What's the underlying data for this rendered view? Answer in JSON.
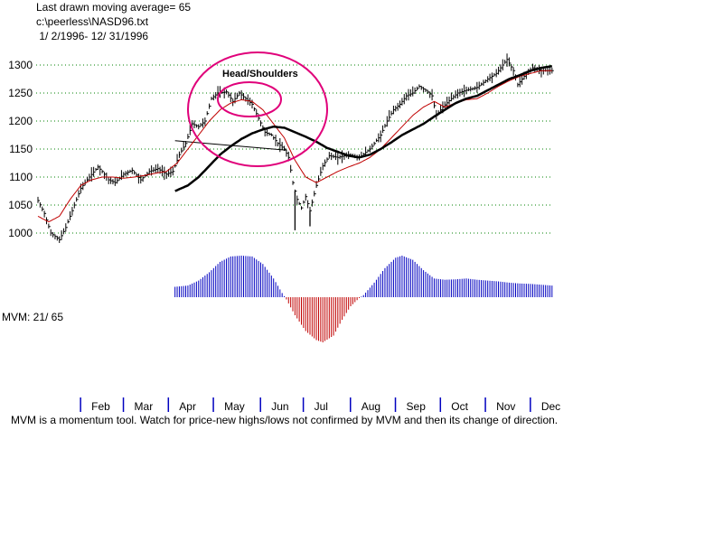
{
  "header": {
    "line1": "Last drawn moving average= 65",
    "line2": "c:\\peerless\\NASD96.txt",
    "line3": " 1/ 2/1996- 12/ 31/1996"
  },
  "chart_data": {
    "type": "line",
    "title": "",
    "ylim": [
      980,
      1325
    ],
    "yticks": [
      1000,
      1050,
      1100,
      1150,
      1200,
      1250,
      1300
    ],
    "grid": true,
    "months": [
      "Feb",
      "Mar",
      "Apr",
      "May",
      "Jun",
      "Jul",
      "Aug",
      "Sep",
      "Oct",
      "Nov",
      "Dec"
    ],
    "month_starts": [
      22,
      42,
      63,
      84,
      106,
      126,
      148,
      169,
      190,
      211,
      232
    ],
    "total_days": 252,
    "price_anchors": [
      [
        0,
        1058
      ],
      [
        3,
        1035
      ],
      [
        6,
        1000
      ],
      [
        10,
        988
      ],
      [
        13,
        1010
      ],
      [
        16,
        1040
      ],
      [
        20,
        1080
      ],
      [
        24,
        1100
      ],
      [
        28,
        1118
      ],
      [
        30,
        1110
      ],
      [
        33,
        1095
      ],
      [
        36,
        1090
      ],
      [
        40,
        1105
      ],
      [
        44,
        1112
      ],
      [
        48,
        1095
      ],
      [
        52,
        1110
      ],
      [
        56,
        1115
      ],
      [
        60,
        1105
      ],
      [
        63,
        1110
      ],
      [
        66,
        1140
      ],
      [
        69,
        1160
      ],
      [
        72,
        1195
      ],
      [
        75,
        1190
      ],
      [
        78,
        1200
      ],
      [
        81,
        1240
      ],
      [
        84,
        1250
      ],
      [
        88,
        1252
      ],
      [
        91,
        1235
      ],
      [
        94,
        1250
      ],
      [
        97,
        1240
      ],
      [
        100,
        1230
      ],
      [
        103,
        1205
      ],
      [
        106,
        1180
      ],
      [
        109,
        1175
      ],
      [
        112,
        1160
      ],
      [
        115,
        1150
      ],
      [
        117,
        1135
      ],
      [
        119,
        1090
      ],
      [
        121,
        1060
      ],
      [
        123,
        1045
      ],
      [
        125,
        1065
      ],
      [
        127,
        1040
      ],
      [
        130,
        1085
      ],
      [
        133,
        1120
      ],
      [
        136,
        1138
      ],
      [
        140,
        1135
      ],
      [
        145,
        1140
      ],
      [
        150,
        1135
      ],
      [
        155,
        1150
      ],
      [
        160,
        1175
      ],
      [
        163,
        1200
      ],
      [
        166,
        1220
      ],
      [
        169,
        1230
      ],
      [
        172,
        1245
      ],
      [
        175,
        1250
      ],
      [
        178,
        1262
      ],
      [
        181,
        1255
      ],
      [
        184,
        1245
      ],
      [
        186,
        1210
      ],
      [
        189,
        1225
      ],
      [
        193,
        1240
      ],
      [
        196,
        1250
      ],
      [
        200,
        1255
      ],
      [
        205,
        1260
      ],
      [
        210,
        1275
      ],
      [
        214,
        1285
      ],
      [
        217,
        1300
      ],
      [
        219,
        1310
      ],
      [
        222,
        1290
      ],
      [
        224,
        1265
      ],
      [
        227,
        1280
      ],
      [
        231,
        1295
      ],
      [
        235,
        1290
      ],
      [
        240,
        1290
      ]
    ],
    "spikes": [
      {
        "day": 120,
        "low": 1005
      },
      {
        "day": 127,
        "low": 1012
      }
    ],
    "ma_short_anchors": [
      [
        0,
        1030
      ],
      [
        5,
        1020
      ],
      [
        10,
        1030
      ],
      [
        15,
        1060
      ],
      [
        20,
        1085
      ],
      [
        25,
        1095
      ],
      [
        30,
        1100
      ],
      [
        35,
        1100
      ],
      [
        40,
        1098
      ],
      [
        45,
        1100
      ],
      [
        50,
        1103
      ],
      [
        55,
        1107
      ],
      [
        60,
        1110
      ],
      [
        65,
        1125
      ],
      [
        70,
        1150
      ],
      [
        75,
        1175
      ],
      [
        80,
        1200
      ],
      [
        85,
        1220
      ],
      [
        90,
        1232
      ],
      [
        95,
        1238
      ],
      [
        100,
        1235
      ],
      [
        105,
        1220
      ],
      [
        110,
        1195
      ],
      [
        115,
        1170
      ],
      [
        120,
        1130
      ],
      [
        125,
        1100
      ],
      [
        130,
        1090
      ],
      [
        135,
        1100
      ],
      [
        140,
        1110
      ],
      [
        145,
        1118
      ],
      [
        150,
        1125
      ],
      [
        155,
        1135
      ],
      [
        160,
        1150
      ],
      [
        165,
        1170
      ],
      [
        170,
        1190
      ],
      [
        175,
        1210
      ],
      [
        180,
        1225
      ],
      [
        185,
        1235
      ],
      [
        190,
        1225
      ],
      [
        195,
        1232
      ],
      [
        200,
        1238
      ],
      [
        205,
        1240
      ],
      [
        210,
        1250
      ],
      [
        215,
        1262
      ],
      [
        220,
        1272
      ],
      [
        225,
        1280
      ],
      [
        230,
        1285
      ],
      [
        235,
        1290
      ],
      [
        240,
        1290
      ]
    ],
    "ma_long_anchors": [
      [
        64,
        1075
      ],
      [
        70,
        1085
      ],
      [
        75,
        1100
      ],
      [
        80,
        1120
      ],
      [
        85,
        1140
      ],
      [
        90,
        1155
      ],
      [
        95,
        1168
      ],
      [
        100,
        1178
      ],
      [
        105,
        1185
      ],
      [
        110,
        1190
      ],
      [
        115,
        1188
      ],
      [
        120,
        1180
      ],
      [
        125,
        1172
      ],
      [
        130,
        1163
      ],
      [
        135,
        1152
      ],
      [
        140,
        1145
      ],
      [
        145,
        1138
      ],
      [
        150,
        1135
      ],
      [
        155,
        1140
      ],
      [
        160,
        1150
      ],
      [
        165,
        1162
      ],
      [
        170,
        1175
      ],
      [
        175,
        1185
      ],
      [
        180,
        1195
      ],
      [
        185,
        1208
      ],
      [
        190,
        1220
      ],
      [
        195,
        1232
      ],
      [
        200,
        1240
      ],
      [
        205,
        1245
      ],
      [
        210,
        1255
      ],
      [
        215,
        1265
      ],
      [
        220,
        1275
      ],
      [
        225,
        1282
      ],
      [
        230,
        1290
      ],
      [
        235,
        1295
      ],
      [
        240,
        1298
      ]
    ],
    "neckline": [
      [
        64,
        1165
      ],
      [
        116,
        1148
      ]
    ],
    "head_shoulders_label": "Head/Shoulders",
    "mvm": {
      "start_day": 64,
      "end_day": 240,
      "anchors": [
        [
          64,
          0.25
        ],
        [
          70,
          0.28
        ],
        [
          75,
          0.4
        ],
        [
          80,
          0.6
        ],
        [
          85,
          0.85
        ],
        [
          90,
          0.98
        ],
        [
          95,
          1.0
        ],
        [
          100,
          0.98
        ],
        [
          105,
          0.8
        ],
        [
          110,
          0.45
        ],
        [
          114,
          0.1
        ],
        [
          116,
          -0.05
        ],
        [
          120,
          -0.4
        ],
        [
          125,
          -0.75
        ],
        [
          130,
          -0.95
        ],
        [
          133,
          -1.0
        ],
        [
          138,
          -0.85
        ],
        [
          142,
          -0.5
        ],
        [
          146,
          -0.2
        ],
        [
          150,
          -0.02
        ],
        [
          152,
          0.05
        ],
        [
          157,
          0.35
        ],
        [
          162,
          0.7
        ],
        [
          167,
          0.95
        ],
        [
          170,
          1.0
        ],
        [
          175,
          0.9
        ],
        [
          180,
          0.65
        ],
        [
          185,
          0.45
        ],
        [
          190,
          0.42
        ],
        [
          195,
          0.43
        ],
        [
          200,
          0.45
        ],
        [
          205,
          0.42
        ],
        [
          210,
          0.4
        ],
        [
          215,
          0.38
        ],
        [
          220,
          0.35
        ],
        [
          225,
          0.33
        ],
        [
          230,
          0.32
        ],
        [
          235,
          0.3
        ],
        [
          240,
          0.28
        ]
      ],
      "up_color": "#0000c0",
      "down_color": "#c00000"
    },
    "colors": {
      "price": "#000000",
      "ma_short": "#c00000",
      "ma_long": "#000000",
      "circle": "#e0007a",
      "grid": "#008000"
    }
  },
  "mvm_label": "MVM: 21/ 65",
  "footnote": "MVM is a momentum tool. Watch for price-new highs/lows not confirmed by MVM and then its change of direction."
}
